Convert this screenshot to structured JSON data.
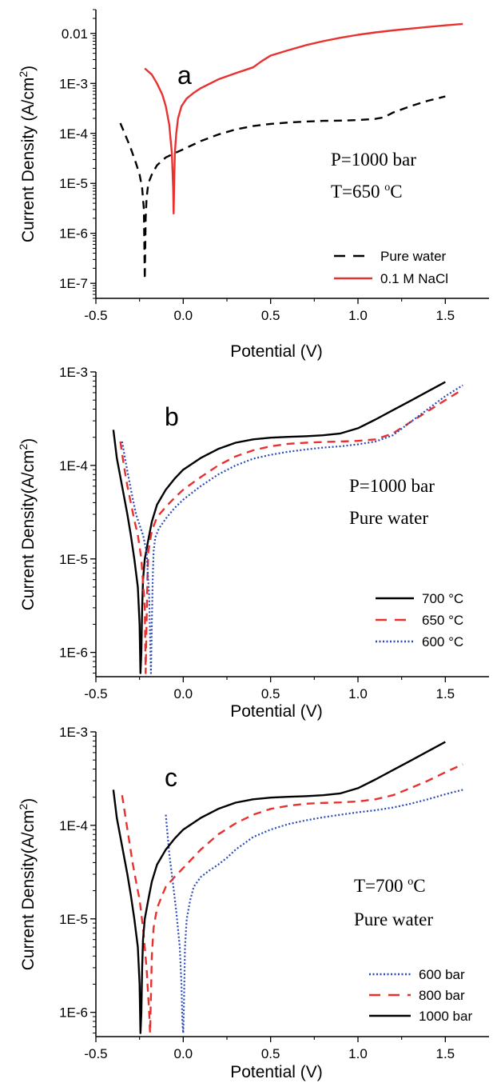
{
  "chart_data": [
    {
      "type": "line",
      "panel_label": "a",
      "xlabel": "Potential (V)",
      "ylabel": "Current Density (A/cm",
      "ylabel_sup": "2",
      "ylabel_close": ")",
      "log_y": true,
      "xlim": [
        -0.5,
        1.75
      ],
      "ylim": [
        5e-08,
        0.03
      ],
      "xticks": [
        "-0.5",
        "0.0",
        "0.5",
        "1.0",
        "1.5"
      ],
      "yticks": [
        {
          "value": 1e-07,
          "label": "1E-7"
        },
        {
          "value": 1e-06,
          "label": "1E-6"
        },
        {
          "value": 1e-05,
          "label": "1E-5"
        },
        {
          "value": 0.0001,
          "label": "1E-4"
        },
        {
          "value": 0.001,
          "label": "1E-3"
        },
        {
          "value": 0.01,
          "label": "0.01"
        }
      ],
      "annotations": [
        "P=1000 bar",
        "T=650",
        "o",
        "C"
      ],
      "legend": "bottom-right",
      "series": [
        {
          "name": "Pure water",
          "color": "#000000",
          "style": "dash",
          "x": [
            -0.36,
            -0.33,
            -0.3,
            -0.27,
            -0.25,
            -0.235,
            -0.225,
            -0.22,
            -0.215,
            -0.21,
            -0.2,
            -0.18,
            -0.15,
            -0.1,
            -0.05,
            0.0,
            0.1,
            0.2,
            0.3,
            0.4,
            0.5,
            0.6,
            0.7,
            0.8,
            0.9,
            1.0,
            1.1,
            1.15,
            1.2,
            1.3,
            1.4,
            1.5
          ],
          "y": [
            0.00016,
            9e-05,
            5e-05,
            2.5e-05,
            1.5e-05,
            8e-06,
            3e-06,
            1.2e-07,
            2e-06,
            5e-06,
            1e-05,
            1.5e-05,
            2.3e-05,
            3.3e-05,
            4e-05,
            4.8e-05,
            7e-05,
            9.5e-05,
            0.00012,
            0.00014,
            0.000155,
            0.000165,
            0.000172,
            0.000178,
            0.00018,
            0.000185,
            0.000195,
            0.00021,
            0.00026,
            0.00035,
            0.00045,
            0.00055
          ]
        },
        {
          "name": "0.1 M NaCl",
          "color": "#e8312f",
          "style": "solid",
          "x": [
            -0.22,
            -0.18,
            -0.15,
            -0.12,
            -0.1,
            -0.08,
            -0.065,
            -0.058,
            -0.055,
            -0.052,
            -0.048,
            -0.04,
            -0.03,
            -0.01,
            0.02,
            0.06,
            0.1,
            0.2,
            0.3,
            0.4,
            0.45,
            0.5,
            0.6,
            0.7,
            0.8,
            0.9,
            1.0,
            1.1,
            1.2,
            1.3,
            1.4,
            1.5,
            1.6
          ],
          "y": [
            0.002,
            0.0015,
            0.001,
            0.0006,
            0.00035,
            0.00015,
            4e-05,
            8e-06,
            2.5e-06,
            1e-05,
            4e-05,
            0.0001,
            0.0002,
            0.00035,
            0.0005,
            0.00065,
            0.0008,
            0.0012,
            0.0016,
            0.0021,
            0.0028,
            0.0036,
            0.0046,
            0.0058,
            0.007,
            0.0082,
            0.0094,
            0.0105,
            0.0115,
            0.0125,
            0.0135,
            0.0145,
            0.0155
          ]
        }
      ]
    },
    {
      "type": "line",
      "panel_label": "b",
      "xlabel": "Potential (V)",
      "ylabel": "Current Density(A/cm",
      "ylabel_sup": "2",
      "ylabel_close": ")",
      "log_y": true,
      "xlim": [
        -0.5,
        1.75
      ],
      "ylim": [
        5.5e-07,
        0.001
      ],
      "xticks": [
        "-0.5",
        "0.0",
        "0.5",
        "1.0",
        "1.5"
      ],
      "yticks": [
        {
          "value": 1e-06,
          "label": "1E-6"
        },
        {
          "value": 1e-05,
          "label": "1E-5"
        },
        {
          "value": 0.0001,
          "label": "1E-4"
        },
        {
          "value": 0.001,
          "label": "1E-3"
        }
      ],
      "annotations": [
        "P=1000 bar",
        "Pure water"
      ],
      "legend": "bottom-right",
      "series": [
        {
          "name": "700 °C",
          "color": "#000000",
          "style": "solid",
          "x": [
            -0.4,
            -0.38,
            -0.35,
            -0.32,
            -0.3,
            -0.28,
            -0.26,
            -0.25,
            -0.245,
            -0.24,
            -0.235,
            -0.23,
            -0.22,
            -0.2,
            -0.18,
            -0.15,
            -0.1,
            -0.05,
            0.0,
            0.1,
            0.2,
            0.3,
            0.4,
            0.5,
            0.6,
            0.7,
            0.8,
            0.9,
            1.0,
            1.1,
            1.2,
            1.3,
            1.4,
            1.5
          ],
          "y": [
            0.00024,
            0.00012,
            6e-05,
            3e-05,
            1.8e-05,
            1e-05,
            5e-06,
            2e-06,
            6e-07,
            1e-06,
            3e-06,
            6e-06,
            1e-05,
            1.6e-05,
            2.5e-05,
            3.8e-05,
            5.5e-05,
            7.2e-05,
            9e-05,
            0.00012,
            0.00015,
            0.000175,
            0.00019,
            0.000198,
            0.000202,
            0.000205,
            0.00021,
            0.00022,
            0.00025,
            0.00031,
            0.00039,
            0.00049,
            0.00062,
            0.00078
          ]
        },
        {
          "name": "650 °C",
          "color": "#e8312f",
          "style": "dash",
          "x": [
            -0.36,
            -0.34,
            -0.32,
            -0.3,
            -0.28,
            -0.26,
            -0.24,
            -0.22,
            -0.215,
            -0.21,
            -0.205,
            -0.2,
            -0.18,
            -0.15,
            -0.1,
            -0.05,
            0.0,
            0.1,
            0.2,
            0.3,
            0.4,
            0.5,
            0.6,
            0.7,
            0.8,
            0.9,
            1.0,
            1.1,
            1.2,
            1.3,
            1.4,
            1.5,
            1.6
          ],
          "y": [
            0.00018,
            0.0001,
            6e-05,
            4e-05,
            2.6e-05,
            1.8e-05,
            1e-05,
            3e-06,
            6e-07,
            2e-06,
            6e-06,
            1.2e-05,
            2e-05,
            2.8e-05,
            3.6e-05,
            4.5e-05,
            5.5e-05,
            7.5e-05,
            0.0001,
            0.000125,
            0.000145,
            0.00016,
            0.00017,
            0.000175,
            0.000178,
            0.00018,
            0.000183,
            0.00019,
            0.00022,
            0.00029,
            0.00038,
            0.0005,
            0.00065
          ]
        },
        {
          "name": "600 °C",
          "color": "#2b4bb8",
          "style": "dot",
          "x": [
            -0.35,
            -0.33,
            -0.31,
            -0.29,
            -0.27,
            -0.25,
            -0.23,
            -0.21,
            -0.195,
            -0.185,
            -0.18,
            -0.175,
            -0.17,
            -0.16,
            -0.14,
            -0.1,
            -0.05,
            0.0,
            0.1,
            0.2,
            0.3,
            0.4,
            0.5,
            0.6,
            0.7,
            0.8,
            0.9,
            1.0,
            1.1,
            1.2,
            1.3,
            1.4,
            1.5,
            1.6
          ],
          "y": [
            0.00018,
            0.00011,
            7e-05,
            4.5e-05,
            3e-05,
            2.3e-05,
            1.8e-05,
            1.2e-05,
            4e-06,
            6e-07,
            2e-06,
            6e-06,
            1.2e-05,
            1.7e-05,
            2.1e-05,
            2.7e-05,
            3.5e-05,
            4.3e-05,
            6e-05,
            8e-05,
            0.0001,
            0.000118,
            0.00013,
            0.00014,
            0.000148,
            0.000155,
            0.00016,
            0.000168,
            0.00018,
            0.00021,
            0.00029,
            0.0004,
            0.00055,
            0.00072
          ]
        }
      ]
    },
    {
      "type": "line",
      "panel_label": "c",
      "xlabel": "Potential (V)",
      "ylabel": "Current Density(A/cm",
      "ylabel_sup": "2",
      "ylabel_close": ")",
      "log_y": true,
      "xlim": [
        -0.5,
        1.75
      ],
      "ylim": [
        5.5e-07,
        0.001
      ],
      "xticks": [
        "-0.5",
        "0.0",
        "0.5",
        "1.0",
        "1.5"
      ],
      "yticks": [
        {
          "value": 1e-06,
          "label": "1E-6"
        },
        {
          "value": 1e-05,
          "label": "1E-5"
        },
        {
          "value": 0.0001,
          "label": "1E-4"
        },
        {
          "value": 0.001,
          "label": "1E-3"
        }
      ],
      "annotations": [
        "T=700",
        "o",
        "C",
        "Pure water"
      ],
      "legend": "bottom-right",
      "series": [
        {
          "name": "600 bar",
          "color": "#2b4bb8",
          "style": "dot",
          "x": [
            -0.1,
            -0.08,
            -0.06,
            -0.04,
            -0.02,
            -0.01,
            -0.005,
            0.0,
            0.005,
            0.01,
            0.02,
            0.04,
            0.06,
            0.1,
            0.15,
            0.2,
            0.25,
            0.3,
            0.4,
            0.5,
            0.6,
            0.7,
            0.8,
            0.9,
            1.0,
            1.1,
            1.2,
            1.3,
            1.4,
            1.5,
            1.6
          ],
          "y": [
            0.00013,
            5e-05,
            2.5e-05,
            1.2e-05,
            5e-06,
            2e-06,
            8e-07,
            6e-07,
            1.5e-06,
            5e-06,
            1e-05,
            1.6e-05,
            2.2e-05,
            2.8e-05,
            3.3e-05,
            3.8e-05,
            4.5e-05,
            5.5e-05,
            7.5e-05,
            9e-05,
            0.000103,
            0.000113,
            0.000122,
            0.00013,
            0.000138,
            0.000145,
            0.000155,
            0.00017,
            0.00019,
            0.000215,
            0.00024
          ]
        },
        {
          "name": "800 bar",
          "color": "#e8312f",
          "style": "dash",
          "x": [
            -0.35,
            -0.33,
            -0.31,
            -0.29,
            -0.27,
            -0.25,
            -0.23,
            -0.21,
            -0.195,
            -0.19,
            -0.185,
            -0.18,
            -0.17,
            -0.15,
            -0.12,
            -0.1,
            -0.05,
            0.0,
            0.1,
            0.2,
            0.3,
            0.4,
            0.5,
            0.6,
            0.7,
            0.8,
            0.9,
            1.0,
            1.1,
            1.2,
            1.3,
            1.4,
            1.5,
            1.6
          ],
          "y": [
            0.00021,
            0.00012,
            7e-05,
            4e-05,
            2.5e-05,
            1.6e-05,
            8e-06,
            3e-06,
            1e-06,
            6e-07,
            1.5e-06,
            4e-06,
            8e-06,
            1.3e-05,
            1.8e-05,
            2.2e-05,
            2.8e-05,
            3.5e-05,
            5.5e-05,
            8e-05,
            0.000105,
            0.00013,
            0.00015,
            0.000162,
            0.00017,
            0.000174,
            0.000176,
            0.00018,
            0.00019,
            0.00021,
            0.00025,
            0.0003,
            0.00037,
            0.00045
          ]
        },
        {
          "name": "1000 bar",
          "color": "#000000",
          "style": "solid",
          "x": [
            -0.4,
            -0.38,
            -0.35,
            -0.32,
            -0.3,
            -0.28,
            -0.26,
            -0.25,
            -0.245,
            -0.24,
            -0.235,
            -0.23,
            -0.22,
            -0.2,
            -0.18,
            -0.15,
            -0.1,
            -0.05,
            0.0,
            0.1,
            0.2,
            0.3,
            0.4,
            0.5,
            0.6,
            0.7,
            0.8,
            0.9,
            1.0,
            1.1,
            1.2,
            1.3,
            1.4,
            1.5
          ],
          "y": [
            0.00024,
            0.00012,
            6e-05,
            3e-05,
            1.8e-05,
            1e-05,
            5e-06,
            2e-06,
            6e-07,
            1e-06,
            3e-06,
            6e-06,
            1e-05,
            1.6e-05,
            2.5e-05,
            3.8e-05,
            5.5e-05,
            7.2e-05,
            9e-05,
            0.00012,
            0.00015,
            0.000175,
            0.00019,
            0.000198,
            0.000202,
            0.000205,
            0.00021,
            0.00022,
            0.00025,
            0.00031,
            0.00039,
            0.00049,
            0.00062,
            0.00078
          ]
        }
      ]
    }
  ]
}
